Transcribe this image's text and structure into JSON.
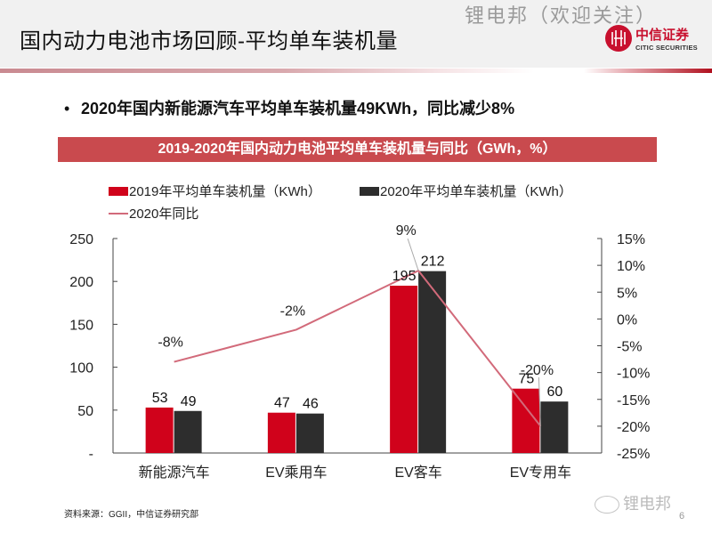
{
  "header": {
    "title": "国内动力电池市场回顾-平均单车装机量",
    "watermark": "锂电邦（欢迎关注）",
    "logo_cn": "中信证券",
    "logo_en": "CITIC SECURITIES"
  },
  "bullet": {
    "marker": "•",
    "text": "2020年国内新能源汽车平均单车装机量49KWh，同比减少8%"
  },
  "chart_banner": "2019-2020年国内动力电池平均单车装机量与同比（GWh，%）",
  "colors": {
    "bar_2019": "#d0021b",
    "bar_2020": "#2d2d2d",
    "line_yoy": "#d26a7a",
    "banner": "#c94a4e"
  },
  "chart_data": {
    "type": "bar",
    "title": "2019-2020年国内动力电池平均单车装机量与同比（GWh，%）",
    "categories": [
      "新能源汽车",
      "EV乘用车",
      "EV客车",
      "EV专用车"
    ],
    "series": [
      {
        "name": "2019年平均单车装机量（KWh）",
        "type": "bar",
        "axis": "left",
        "values": [
          53,
          47,
          195,
          75
        ],
        "labels": [
          "53",
          "47",
          "195",
          "75"
        ]
      },
      {
        "name": "2020年平均单车装机量（KWh）",
        "type": "bar",
        "axis": "left",
        "values": [
          49,
          46,
          212,
          60
        ],
        "labels": [
          "49",
          "46",
          "212",
          "60"
        ]
      },
      {
        "name": "2020年同比",
        "type": "line",
        "axis": "right",
        "values": [
          -8,
          -2,
          9,
          -20
        ],
        "labels": [
          "-8%",
          "-2%",
          "9%",
          "-20%"
        ]
      }
    ],
    "left_axis": {
      "ylim": [
        0,
        250
      ],
      "ticks": [
        0,
        50,
        100,
        150,
        200,
        250
      ],
      "tick_labels": [
        "-",
        "50",
        "100",
        "150",
        "200",
        "250"
      ]
    },
    "right_axis": {
      "ylim": [
        -25,
        15
      ],
      "ticks": [
        15,
        10,
        5,
        0,
        -5,
        -10,
        -15,
        -20,
        -25
      ],
      "tick_labels": [
        "15%",
        "10%",
        "5%",
        "0%",
        "-5%",
        "-10%",
        "-15%",
        "-20%",
        "-25%"
      ]
    },
    "xlabel": "",
    "ylabel": "",
    "grid": false,
    "legend": "top-left"
  },
  "legend": {
    "items": [
      "2019年平均单车装机量（KWh）",
      "2020年平均单车装机量（KWh）",
      "2020年同比"
    ]
  },
  "footer": {
    "source": "资料来源：GGII，中信证券研究部",
    "watermark": "锂电邦",
    "page_number": "6"
  }
}
